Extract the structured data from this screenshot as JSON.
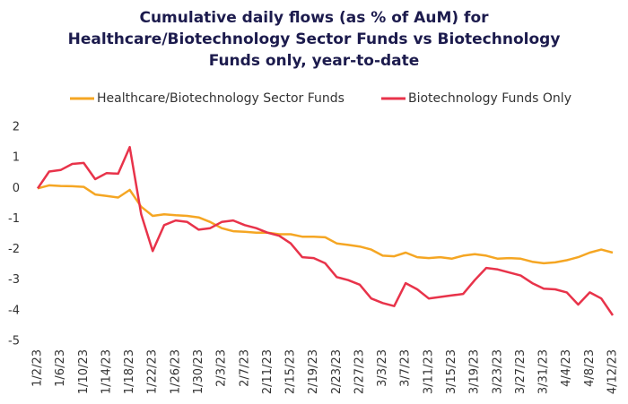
{
  "chart_data": {
    "type": "line",
    "title": "Cumulative daily flows (as % of AuM) for Healthcare/Biotechnology Sector Funds vs Biotechnology Funds only, year-to-date",
    "categories": [
      "1/2/23",
      null,
      "1/6/23",
      null,
      "1/10/23",
      null,
      "1/14/23",
      null,
      "1/18/23",
      null,
      "1/22/23",
      null,
      "1/26/23",
      null,
      "1/30/23",
      null,
      "2/3/23",
      null,
      "2/7/23",
      null,
      "2/11/23",
      null,
      "2/15/23",
      null,
      "2/19/23",
      null,
      "2/23/23",
      null,
      "2/27/23",
      null,
      "3/3/23",
      null,
      "3/7/23",
      null,
      "3/11/23",
      null,
      "3/15/23",
      null,
      "3/19/23",
      null,
      "3/23/23",
      null,
      "3/27/23",
      null,
      "3/31/23",
      null,
      "4/4/23",
      null,
      "4/8/23",
      null,
      "4/12/23"
    ],
    "series": [
      {
        "name": "Healthcare/Biotechnology Sector Funds",
        "color": "#f5a623",
        "values": [
          0,
          0.1,
          0.08,
          0.07,
          0.05,
          -0.2,
          -0.25,
          -0.3,
          -0.05,
          -0.6,
          -0.9,
          -0.85,
          -0.88,
          -0.9,
          -0.95,
          -1.1,
          -1.3,
          -1.4,
          -1.42,
          -1.45,
          -1.45,
          -1.5,
          -1.5,
          -1.58,
          -1.58,
          -1.6,
          -1.8,
          -1.85,
          -1.9,
          -2.0,
          -2.2,
          -2.22,
          -2.1,
          -2.25,
          -2.28,
          -2.25,
          -2.3,
          -2.2,
          -2.15,
          -2.2,
          -2.3,
          -2.28,
          -2.3,
          -2.4,
          -2.45,
          -2.42,
          -2.35,
          -2.25,
          -2.1,
          -2.0,
          -2.1
        ]
      },
      {
        "name": "Biotechnology Funds Only",
        "color": "#e8334a",
        "values": [
          0,
          0.55,
          0.6,
          0.8,
          0.83,
          0.3,
          0.5,
          0.48,
          1.35,
          -0.85,
          -2.05,
          -1.2,
          -1.05,
          -1.1,
          -1.35,
          -1.3,
          -1.1,
          -1.05,
          -1.2,
          -1.3,
          -1.45,
          -1.55,
          -1.8,
          -2.25,
          -2.28,
          -2.45,
          -2.9,
          -3.0,
          -3.15,
          -3.6,
          -3.75,
          -3.85,
          -3.1,
          -3.3,
          -3.6,
          -3.55,
          -3.5,
          -3.45,
          -3.0,
          -2.6,
          -2.65,
          -2.75,
          -2.85,
          -3.1,
          -3.28,
          -3.3,
          -3.4,
          -3.8,
          -3.4,
          -3.6,
          -4.15
        ]
      }
    ],
    "ylim": [
      -5,
      2
    ],
    "yticks": [
      -5,
      -4,
      -3,
      -2,
      -1,
      0,
      1,
      2
    ],
    "grid": false
  }
}
